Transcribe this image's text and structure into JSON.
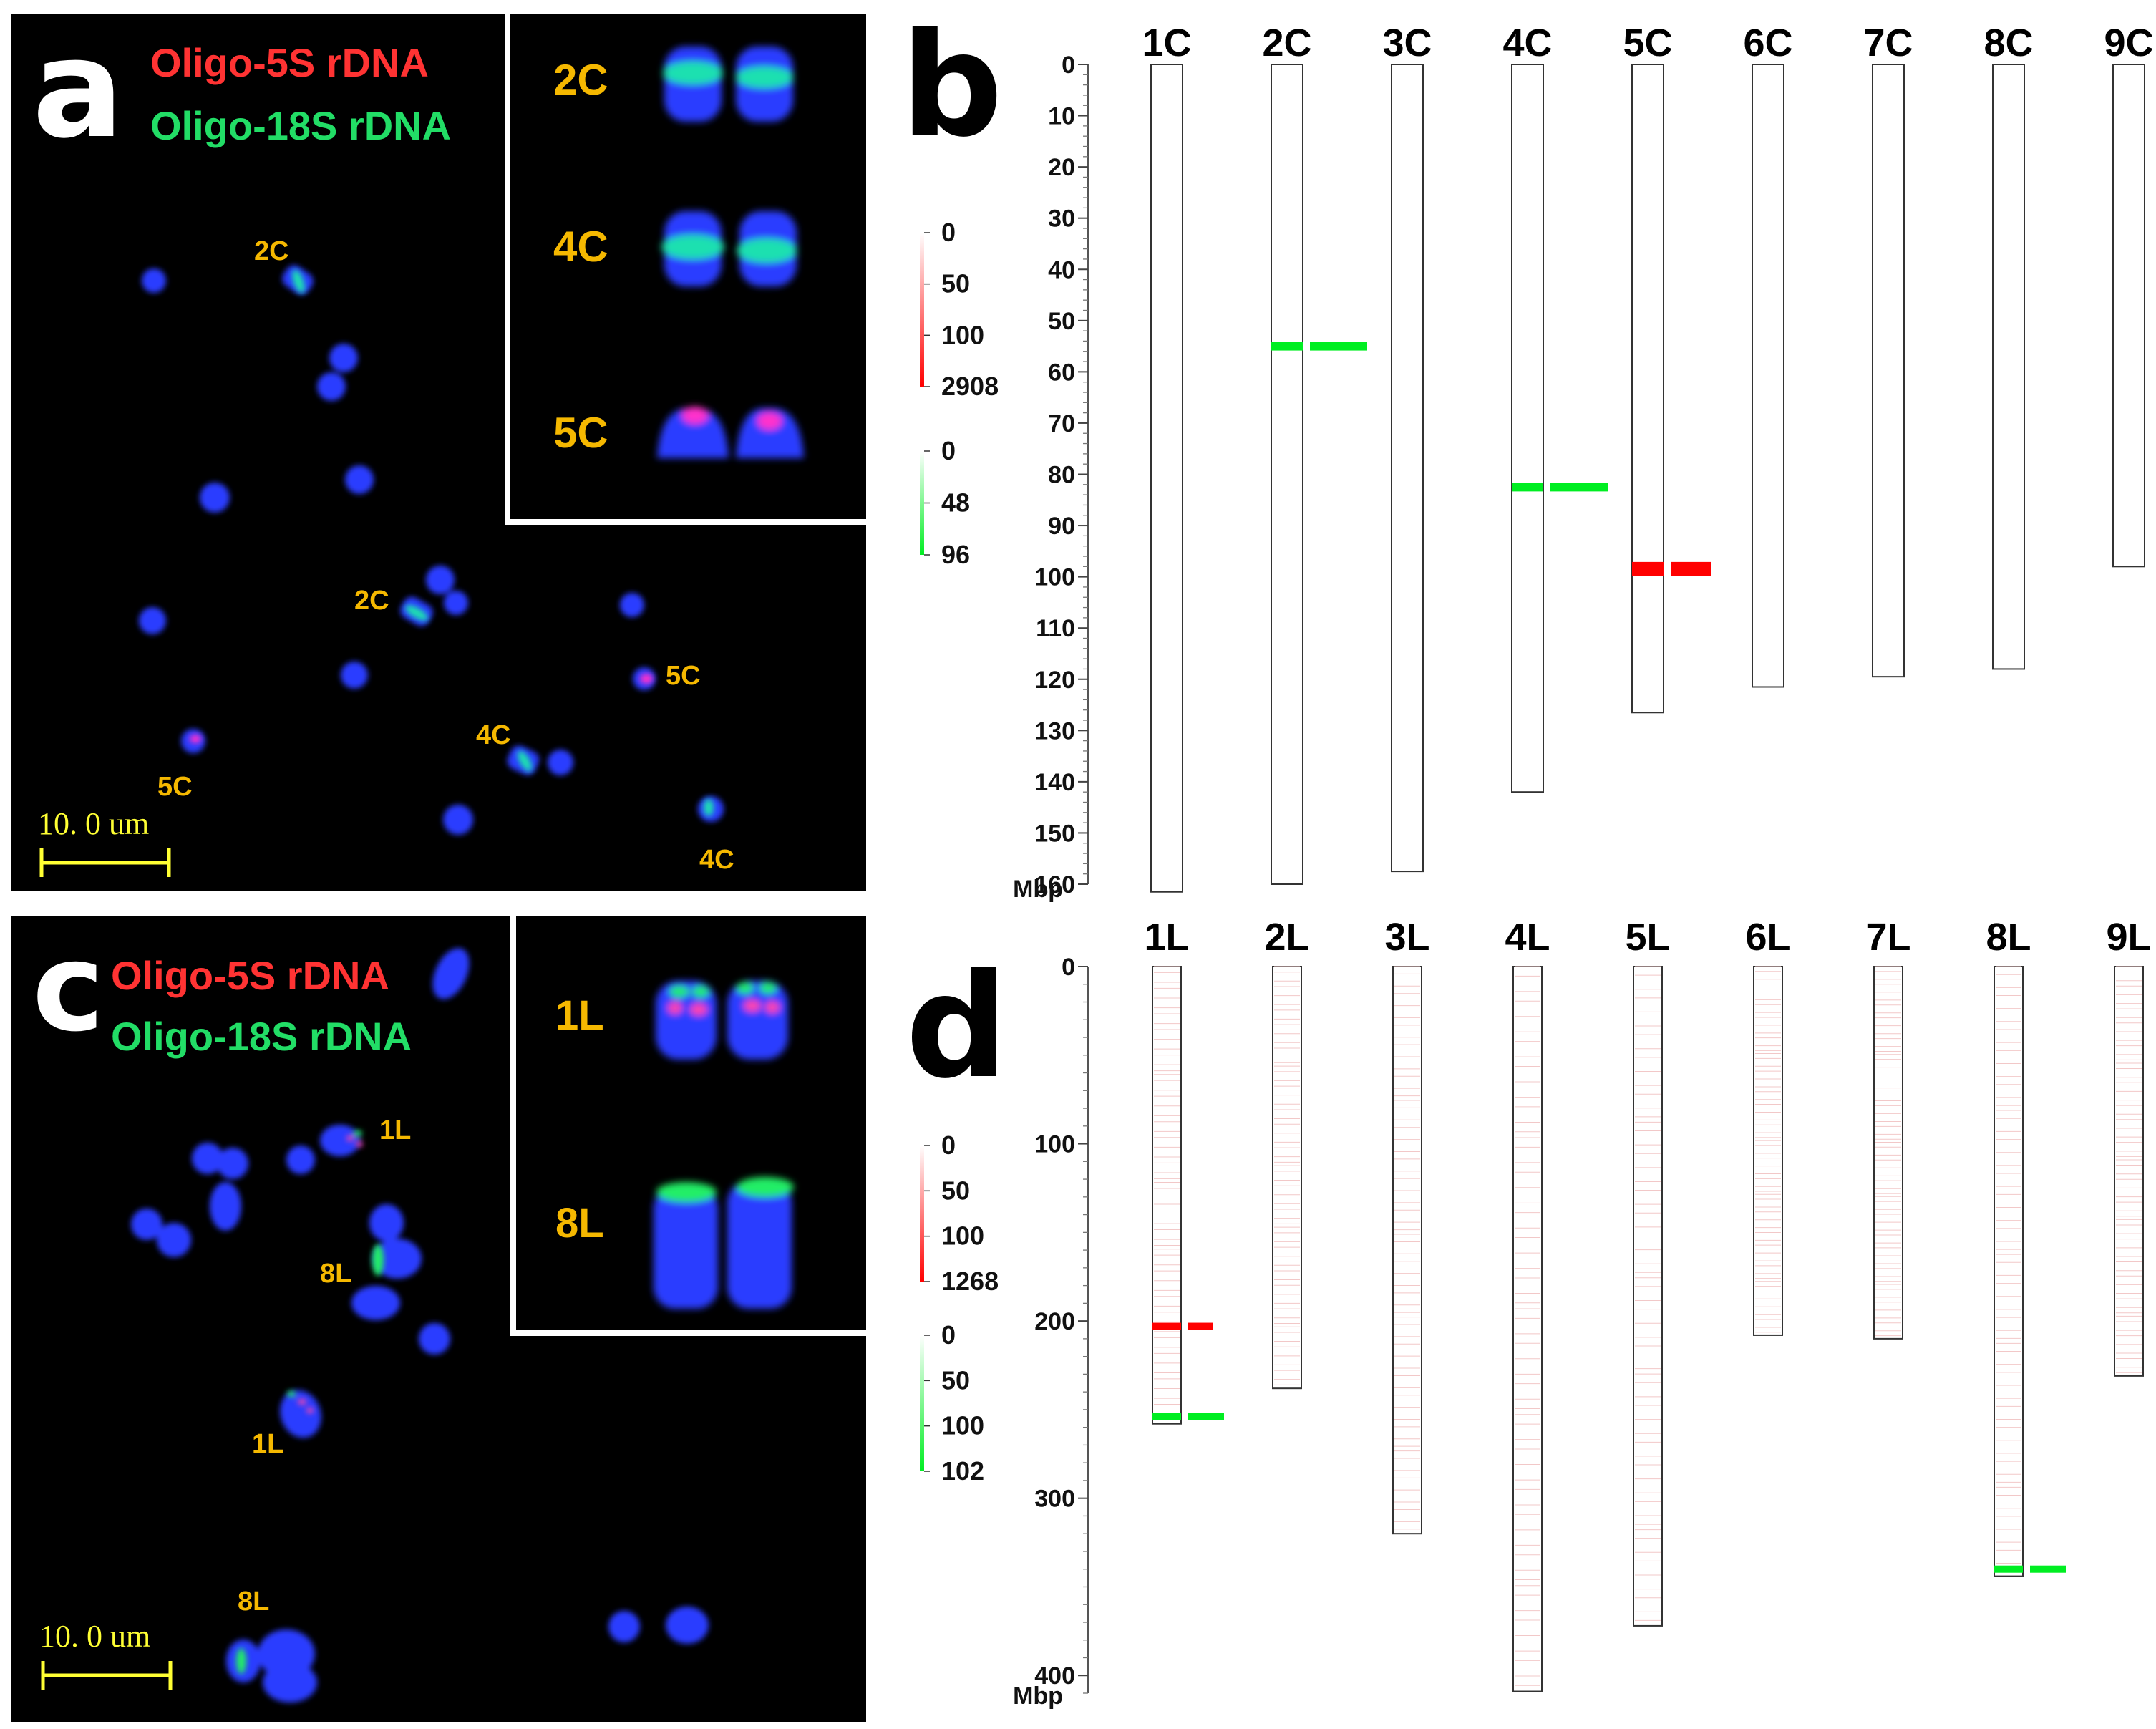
{
  "panel_a": {
    "letter": "a",
    "probe_5s": "Oligo-5S rDNA",
    "probe_18s": "Oligo-18S rDNA",
    "scale_bar": "10. 0 um",
    "inset_labels": [
      "2C",
      "4C",
      "5C"
    ],
    "chromosome_labels": [
      "2C",
      "2C",
      "5C",
      "5C",
      "4C",
      "4C"
    ]
  },
  "panel_c": {
    "letter": "c",
    "probe_5s": "Oligo-5S rDNA",
    "probe_18s": "Oligo-18S rDNA",
    "scale_bar": "10. 0 um",
    "inset_labels": [
      "1L",
      "8L"
    ],
    "chromosome_labels": [
      "1L",
      "8L",
      "1L",
      "8L"
    ]
  },
  "colors": {
    "red": "#ff0000",
    "green": "#00ee22",
    "label": "#f5b800",
    "probe_red": "#ff3333",
    "probe_green": "#22dd66",
    "dapi": "#2a3cff"
  },
  "chart_data": [
    {
      "type": "heatmap",
      "panel": "b",
      "ylabel": "Mbp",
      "ylim": [
        0,
        160
      ],
      "yticks": [
        0,
        10,
        20,
        30,
        40,
        50,
        60,
        70,
        80,
        90,
        100,
        110,
        120,
        130,
        140,
        150,
        160
      ],
      "legend_red": [
        "0",
        "50",
        "100",
        "2908"
      ],
      "legend_green": [
        "0",
        "48",
        "96"
      ],
      "chromosomes": [
        {
          "name": "1C",
          "length": 161.5,
          "red": [],
          "green": []
        },
        {
          "name": "2C",
          "length": 160,
          "red": [],
          "green": [
            55
          ]
        },
        {
          "name": "3C",
          "length": 157.5,
          "red": [],
          "green": []
        },
        {
          "name": "4C",
          "length": 142,
          "red": [],
          "green": [
            82.5
          ]
        },
        {
          "name": "5C",
          "length": 126.5,
          "red": [
            98.5
          ],
          "green": []
        },
        {
          "name": "6C",
          "length": 121.5,
          "red": [],
          "green": []
        },
        {
          "name": "7C",
          "length": 119.5,
          "red": [],
          "green": []
        },
        {
          "name": "8C",
          "length": 118,
          "red": [],
          "green": []
        },
        {
          "name": "9C",
          "length": 98,
          "red": [],
          "green": []
        }
      ]
    },
    {
      "type": "heatmap",
      "panel": "d",
      "ylabel": "Mbp",
      "ylim": [
        0,
        410
      ],
      "yticks": [
        0,
        100,
        200,
        300,
        400
      ],
      "legend_red": [
        "0",
        "50",
        "100",
        "1268"
      ],
      "legend_green": [
        "0",
        "50",
        "100",
        "102"
      ],
      "chromosomes": [
        {
          "name": "1L",
          "length": 258,
          "red": [
            203
          ],
          "green": [
            254
          ]
        },
        {
          "name": "2L",
          "length": 238,
          "red": [],
          "green": []
        },
        {
          "name": "3L",
          "length": 320,
          "red": [],
          "green": []
        },
        {
          "name": "4L",
          "length": 409,
          "red": [],
          "green": []
        },
        {
          "name": "5L",
          "length": 372,
          "red": [],
          "green": []
        },
        {
          "name": "6L",
          "length": 208,
          "red": [],
          "green": []
        },
        {
          "name": "7L",
          "length": 210,
          "red": [],
          "green": []
        },
        {
          "name": "8L",
          "length": 344,
          "red": [],
          "green": [
            340
          ]
        },
        {
          "name": "9L",
          "length": 231,
          "red": [],
          "green": []
        }
      ]
    }
  ]
}
